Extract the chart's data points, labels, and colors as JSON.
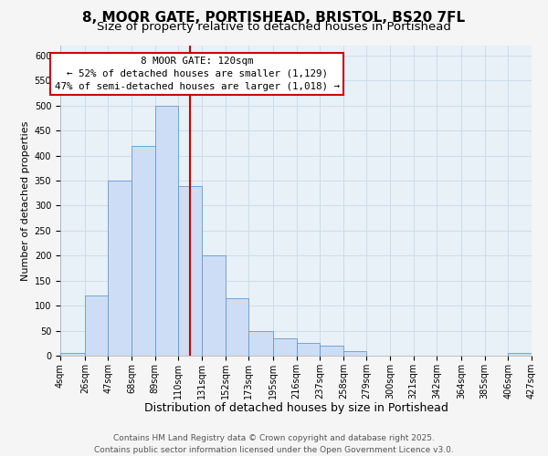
{
  "title": "8, MOOR GATE, PORTISHEAD, BRISTOL, BS20 7FL",
  "subtitle": "Size of property relative to detached houses in Portishead",
  "xlabel": "Distribution of detached houses by size in Portishead",
  "ylabel": "Number of detached properties",
  "bin_labels": [
    "4sqm",
    "26sqm",
    "47sqm",
    "68sqm",
    "89sqm",
    "110sqm",
    "131sqm",
    "152sqm",
    "173sqm",
    "195sqm",
    "216sqm",
    "237sqm",
    "258sqm",
    "279sqm",
    "300sqm",
    "321sqm",
    "342sqm",
    "364sqm",
    "385sqm",
    "406sqm",
    "427sqm"
  ],
  "bin_edges": [
    4,
    26,
    47,
    68,
    89,
    110,
    131,
    152,
    173,
    195,
    216,
    237,
    258,
    279,
    300,
    321,
    342,
    364,
    385,
    406,
    427
  ],
  "bar_heights": [
    5,
    120,
    350,
    420,
    500,
    340,
    200,
    115,
    50,
    35,
    25,
    20,
    10,
    0,
    0,
    0,
    0,
    0,
    0,
    5
  ],
  "bar_color": "#ccddf5",
  "bar_edge_color": "#6699cc",
  "vline_x": 120,
  "vline_color": "#cc0000",
  "annotation_title": "8 MOOR GATE: 120sqm",
  "annotation_line1": "← 52% of detached houses are smaller (1,129)",
  "annotation_line2": "47% of semi-detached houses are larger (1,018) →",
  "annotation_box_color": "#ffffff",
  "annotation_box_edge": "#cc0000",
  "ylim": [
    0,
    620
  ],
  "yticks": [
    0,
    50,
    100,
    150,
    200,
    250,
    300,
    350,
    400,
    450,
    500,
    550,
    600
  ],
  "grid_color": "#ccdde8",
  "background_color": "#e8f0f8",
  "fig_background": "#f5f5f5",
  "footer1": "Contains HM Land Registry data © Crown copyright and database right 2025.",
  "footer2": "Contains public sector information licensed under the Open Government Licence v3.0.",
  "title_fontsize": 11,
  "subtitle_fontsize": 9.5,
  "xlabel_fontsize": 9,
  "ylabel_fontsize": 8,
  "tick_fontsize": 7,
  "footer_fontsize": 6.5
}
